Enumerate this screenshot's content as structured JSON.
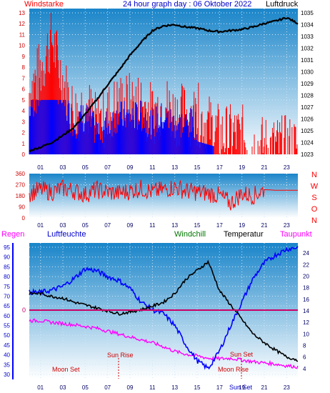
{
  "top": {
    "title": "24 hour graph day : 06 Oktober 2022",
    "left_label": "Windstarke",
    "right_label": "Luftdruck",
    "left_ticks": [
      "0",
      "1",
      "2",
      "3",
      "4",
      "5",
      "6",
      "7",
      "8",
      "9",
      "10",
      "11",
      "12",
      "13"
    ],
    "right_ticks": [
      "1023",
      "1024",
      "1025",
      "1026",
      "1027",
      "1028",
      "1029",
      "1030",
      "1031",
      "1032",
      "1033",
      "1034",
      "1035"
    ],
    "x_ticks": [
      "01",
      "03",
      "05",
      "07",
      "09",
      "11",
      "13",
      "15",
      "17",
      "19",
      "21",
      "23"
    ]
  },
  "middle": {
    "left_ticks": [
      "0",
      "90",
      "180",
      "270",
      "360"
    ],
    "compass": [
      "N",
      "W",
      "S",
      "O",
      "N"
    ],
    "x_ticks": [
      "01",
      "03",
      "05",
      "07",
      "09",
      "11",
      "13",
      "15",
      "17",
      "19",
      "21",
      "23"
    ]
  },
  "bottom": {
    "labels": {
      "regen": "Regen",
      "luftfeuchte": "Luftfeuchte",
      "windchill": "Windchill",
      "temperatur": "Temperatur",
      "taupunkt": "Taupunkt"
    },
    "left_ticks": [
      "30",
      "35",
      "40",
      "45",
      "50",
      "55",
      "60",
      "65",
      "70",
      "75",
      "80",
      "85",
      "90",
      "95"
    ],
    "right_ticks": [
      "4",
      "6",
      "8",
      "10",
      "12",
      "14",
      "16",
      "18",
      "20",
      "22",
      "24"
    ],
    "regen_value": "0",
    "x_ticks": [
      "01",
      "03",
      "05",
      "07",
      "09",
      "11",
      "13",
      "15",
      "17",
      "19",
      "21",
      "23"
    ],
    "annotations": {
      "sun_rise": "Sun Rise",
      "sun_set": "Sun Set",
      "moon_set": "Moon Set",
      "moon_rise": "Moon Rise",
      "sun_set_axis": "Sun Set"
    }
  },
  "colors": {
    "bg_top": "#1a85c9",
    "bg_bottom": "#ffffff",
    "wind": "#ff0000",
    "gust_blue": "#0000ff",
    "pressure": "#000000",
    "humidity": "#0000ff",
    "temperature": "#000000",
    "dewpoint": "#ff00ff",
    "rain_line": "#cc0066"
  },
  "chart_data": [
    {
      "type": "line",
      "x_unit": "hour",
      "series": [
        {
          "name": "Windstarke",
          "axis": "left",
          "x": [
            0,
            1,
            2,
            3,
            4,
            5,
            6,
            7,
            8,
            9,
            10,
            11,
            12,
            13,
            14,
            15,
            16,
            17,
            18,
            19,
            20,
            21,
            22,
            23,
            24
          ],
          "values": [
            6,
            8,
            11,
            7,
            4,
            5,
            3,
            4,
            5,
            5,
            5,
            4,
            5,
            4,
            4,
            4,
            3,
            2,
            2,
            2,
            1,
            1,
            1,
            1,
            1
          ]
        },
        {
          "name": "Luftdruck",
          "axis": "right",
          "x": [
            0,
            1,
            2,
            3,
            4,
            5,
            6,
            7,
            8,
            9,
            10,
            11,
            12,
            13,
            14,
            15,
            16,
            17,
            18,
            19,
            20,
            21,
            22,
            23,
            24
          ],
          "values": [
            1023.3,
            1023.6,
            1024.0,
            1024.6,
            1025.3,
            1026.4,
            1027.6,
            1028.9,
            1030.1,
            1031.4,
            1032.5,
            1033.5,
            1033.9,
            1034.0,
            1033.8,
            1033.7,
            1033.5,
            1033.4,
            1033.5,
            1033.6,
            1033.8,
            1034.1,
            1034.3,
            1034.6,
            1034.1
          ]
        }
      ],
      "left_ylim": [
        0,
        13
      ],
      "right_ylim": [
        1023,
        1035
      ]
    },
    {
      "type": "line",
      "x_unit": "hour",
      "series": [
        {
          "name": "Windrichtung",
          "x": [
            0,
            1,
            2,
            3,
            4,
            5,
            6,
            7,
            8,
            9,
            10,
            11,
            12,
            13,
            14,
            15,
            16,
            17,
            18,
            19,
            20,
            21,
            22,
            23,
            24
          ],
          "values": [
            200,
            230,
            210,
            240,
            220,
            190,
            230,
            210,
            200,
            220,
            240,
            210,
            230,
            250,
            220,
            210,
            200,
            180,
            120,
            200,
            180,
            230,
            225,
            225,
            225
          ]
        }
      ],
      "ylim": [
        0,
        360
      ]
    },
    {
      "type": "line",
      "x_unit": "hour",
      "series": [
        {
          "name": "Luftfeuchte",
          "axis": "left",
          "x": [
            0,
            1,
            2,
            3,
            4,
            5,
            6,
            7,
            8,
            9,
            10,
            11,
            12,
            13,
            14,
            15,
            16,
            17,
            18,
            19,
            20,
            21,
            22,
            23,
            24
          ],
          "values": [
            72,
            72,
            73,
            75,
            79,
            84,
            83,
            80,
            78,
            74,
            67,
            63,
            61,
            55,
            45,
            37,
            33,
            42,
            55,
            67,
            79,
            87,
            91,
            94,
            95
          ]
        },
        {
          "name": "Temperatur",
          "axis": "right",
          "x": [
            0,
            1,
            2,
            3,
            4,
            5,
            6,
            7,
            8,
            9,
            10,
            11,
            12,
            13,
            14,
            15,
            16,
            17,
            18,
            19,
            20,
            21,
            22,
            23,
            24
          ],
          "values": [
            17.0,
            17.0,
            16.5,
            16.2,
            15.5,
            15.0,
            14.5,
            14.0,
            13.5,
            13.8,
            14.2,
            14.8,
            15.5,
            17.0,
            19.5,
            21.0,
            22.5,
            17.5,
            15.0,
            12.5,
            10.0,
            8.5,
            7.2,
            6.0,
            5.5
          ]
        },
        {
          "name": "Taupunkt",
          "axis": "right",
          "x": [
            0,
            1,
            2,
            3,
            4,
            5,
            6,
            7,
            8,
            9,
            10,
            11,
            12,
            13,
            14,
            15,
            16,
            17,
            18,
            19,
            20,
            21,
            22,
            23,
            24
          ],
          "values": [
            12.3,
            12.3,
            12.0,
            11.8,
            11.6,
            11.3,
            11.0,
            10.5,
            10.0,
            9.5,
            9.0,
            8.5,
            7.8,
            7.0,
            6.5,
            6.2,
            5.8,
            5.7,
            5.8,
            5.5,
            5.2,
            5.0,
            4.8,
            4.5,
            4.3
          ]
        }
      ],
      "left_ylim": [
        30,
        95
      ],
      "right_ylim": [
        3,
        25
      ],
      "regen": 0
    }
  ]
}
